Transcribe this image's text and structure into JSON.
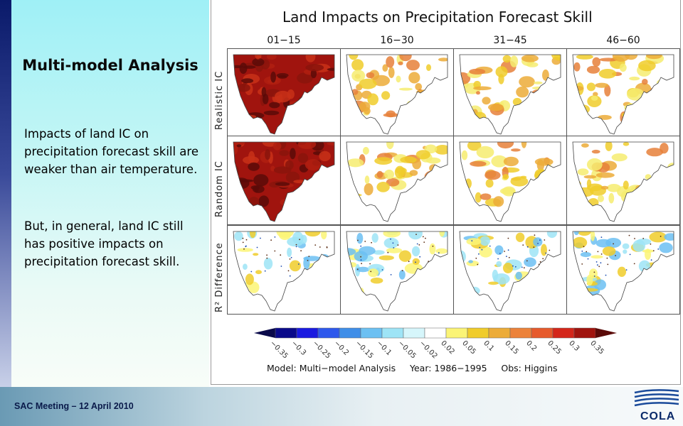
{
  "sidebar": {
    "title": "Multi-model Analysis",
    "paragraph1": "Impacts of land IC on precipitation forecast skill are weaker than air temperature.",
    "paragraph2": "But, in general, land IC still has positive impacts on precipitation forecast skill."
  },
  "figure": {
    "title": "Land Impacts on Precipitation Forecast Skill",
    "periods": [
      "01−15",
      "16−30",
      "31−45",
      "46−60"
    ],
    "rows": [
      "Realistic IC",
      "Random IC",
      "R² Difference"
    ],
    "colorbar": {
      "colors": [
        "#0a0a8a",
        "#1a1ae0",
        "#2e58ec",
        "#3f8ee8",
        "#6cc0f2",
        "#9ee4f6",
        "#d6f6fb",
        "#ffffff",
        "#fbf476",
        "#f0cc2a",
        "#ecac38",
        "#ec823a",
        "#e65a2c",
        "#d4261a",
        "#a0140e"
      ],
      "end_low": "#0a0a4a",
      "end_high": "#5a0a08",
      "ticks": [
        "−0.35",
        "−0.3",
        "−0.25",
        "−0.2",
        "−0.15",
        "−0.1",
        "−0.05",
        "−0.02",
        "0.02",
        "0.05",
        "0.1",
        "0.15",
        "0.2",
        "0.25",
        "0.3",
        "0.35"
      ]
    },
    "footer": "Model: Multi−model Analysis     Year: 1986−1995     Obs: Higgins"
  },
  "footer": {
    "meeting": "SAC Meeting – 12 April 2010",
    "logo": "COLA"
  }
}
